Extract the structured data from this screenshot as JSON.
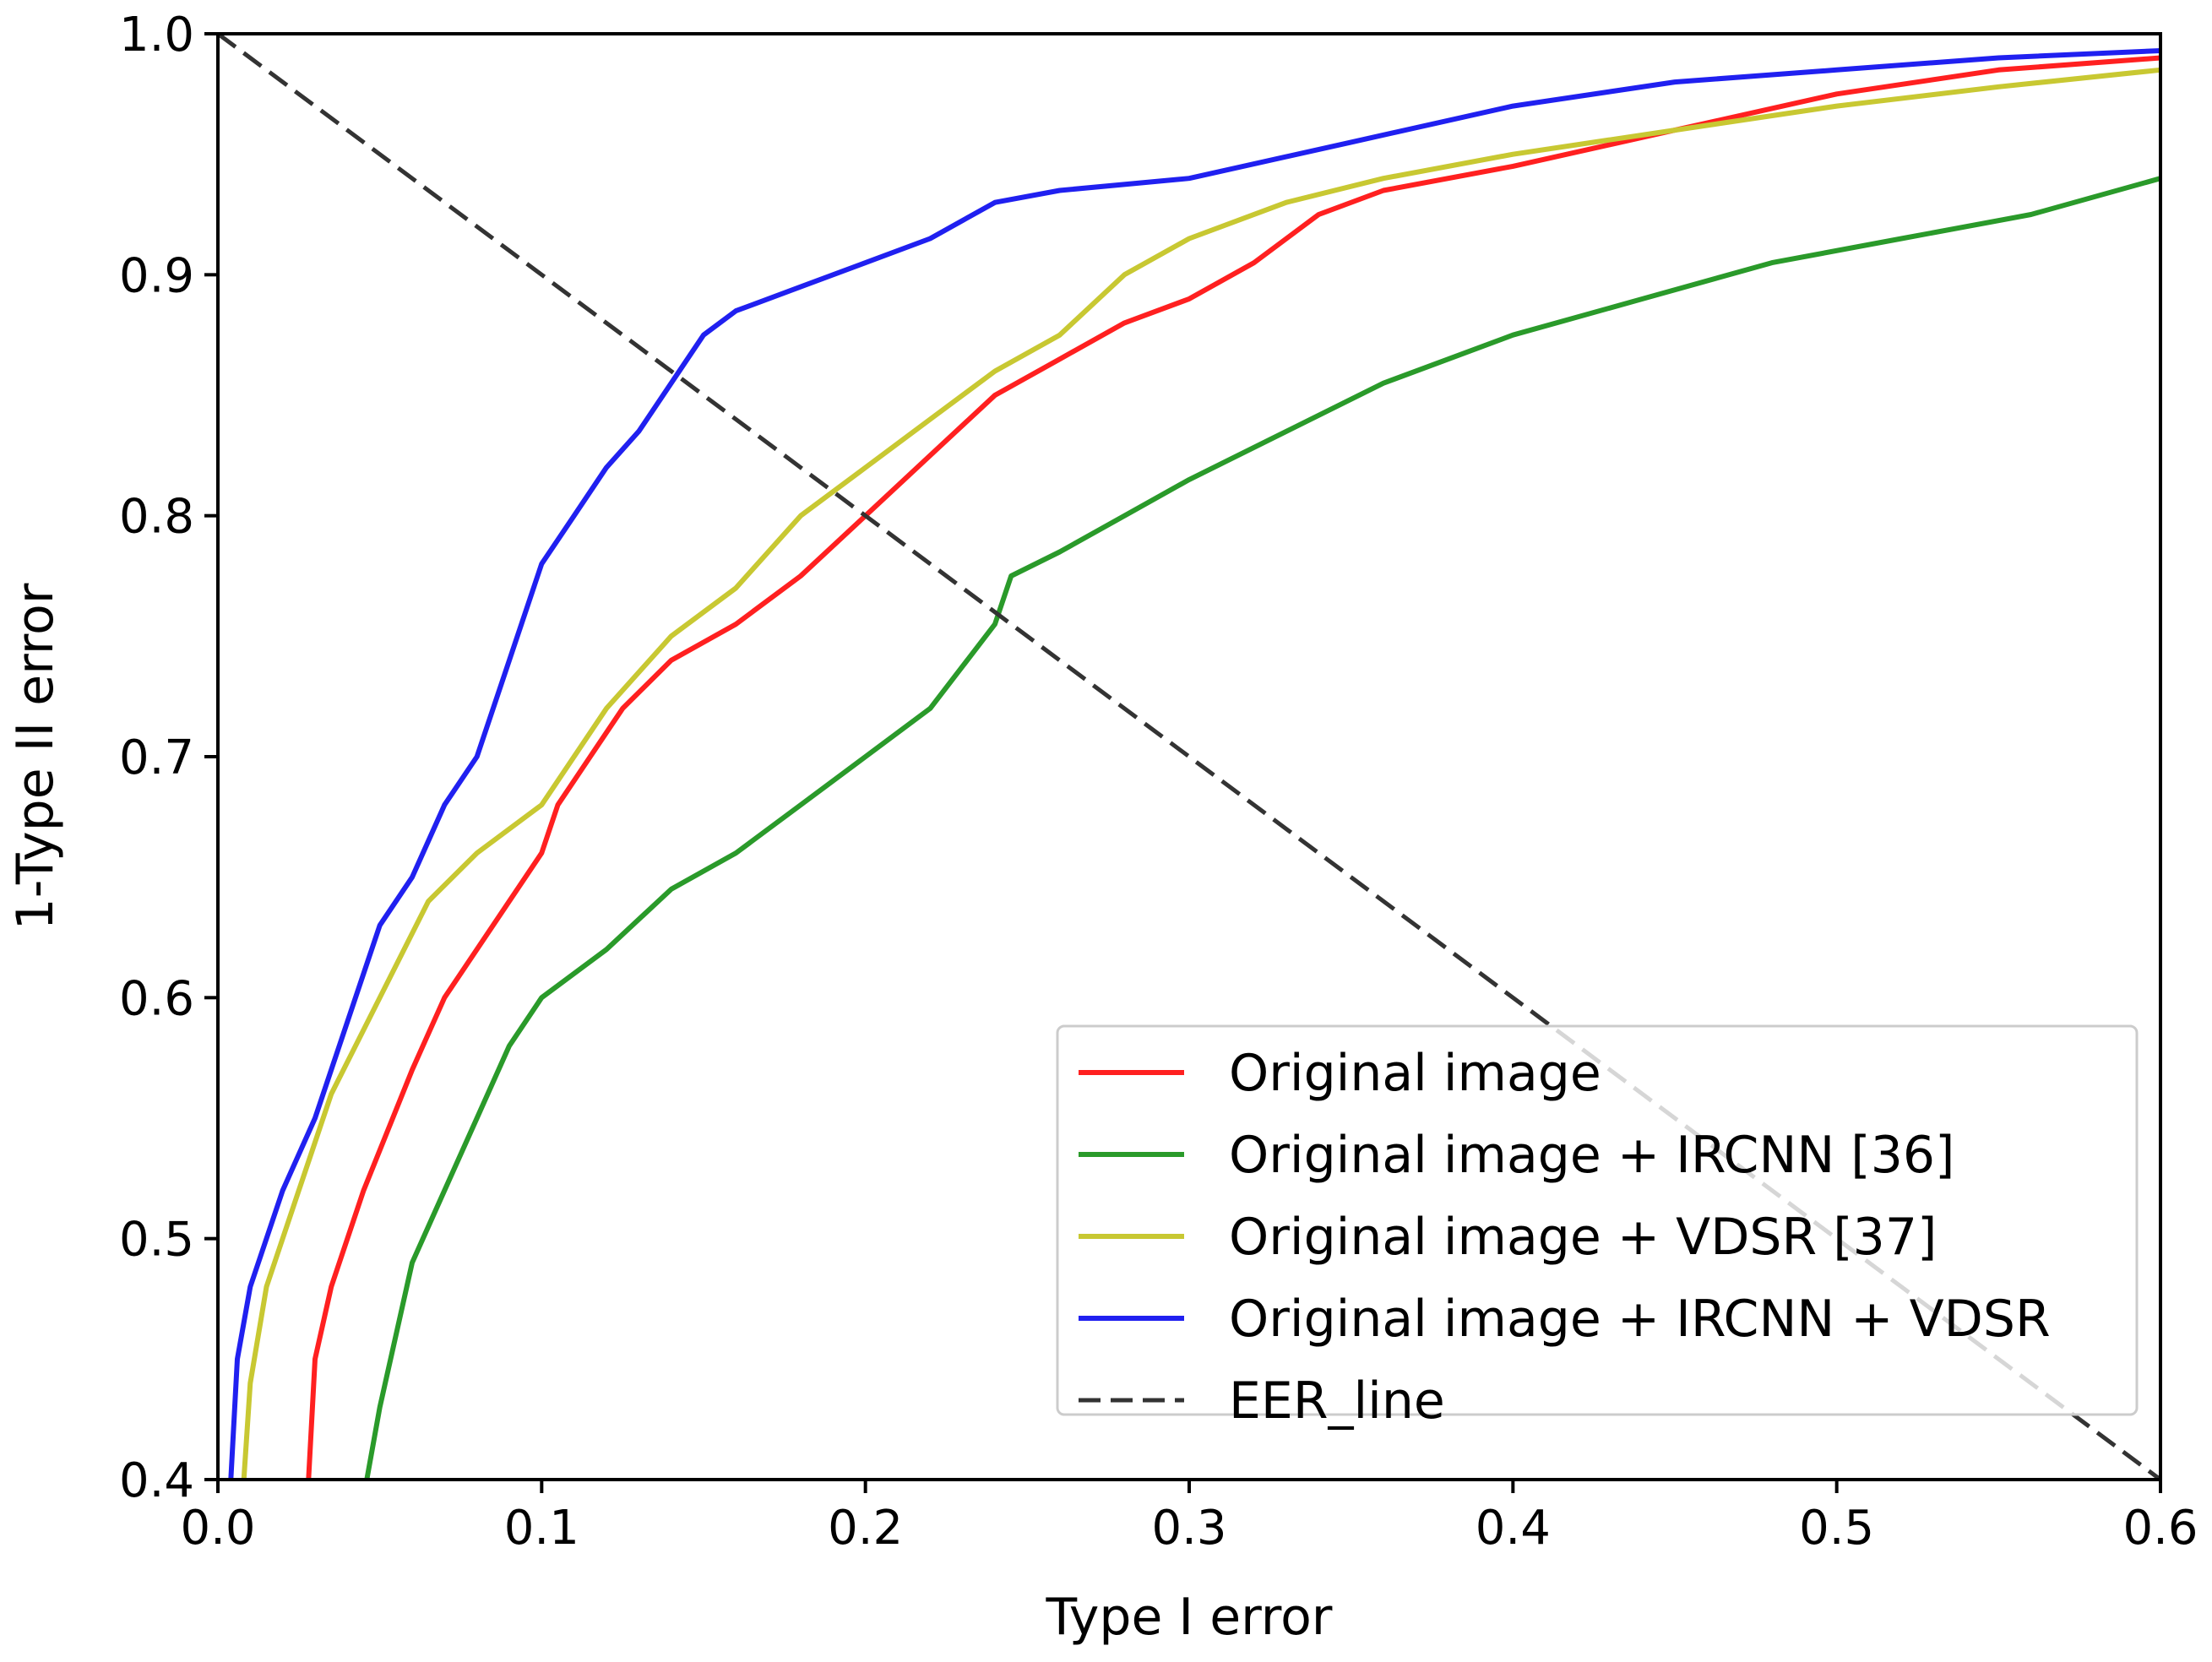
{
  "chart_data": {
    "type": "line",
    "title": "",
    "xlabel": "Type I error",
    "ylabel": "1-Type II error",
    "xlim": [
      0.0,
      0.6
    ],
    "ylim": [
      0.4,
      1.0
    ],
    "xticks": [
      "0.0",
      "0.1",
      "0.2",
      "0.3",
      "0.4",
      "0.5",
      "0.6"
    ],
    "yticks": [
      "0.4",
      "0.5",
      "0.6",
      "0.7",
      "0.8",
      "0.9",
      "1.0"
    ],
    "grid": false,
    "legend_position": "lower-right",
    "series": [
      {
        "name": "Original image",
        "color": "#ff2020",
        "style": "solid",
        "points": [
          [
            0.028,
            0.4
          ],
          [
            0.03,
            0.45
          ],
          [
            0.035,
            0.48
          ],
          [
            0.045,
            0.52
          ],
          [
            0.06,
            0.57
          ],
          [
            0.07,
            0.6
          ],
          [
            0.085,
            0.63
          ],
          [
            0.1,
            0.66
          ],
          [
            0.105,
            0.68
          ],
          [
            0.115,
            0.7
          ],
          [
            0.125,
            0.72
          ],
          [
            0.14,
            0.74
          ],
          [
            0.16,
            0.755
          ],
          [
            0.18,
            0.775
          ],
          [
            0.2,
            0.8
          ],
          [
            0.22,
            0.825
          ],
          [
            0.24,
            0.85
          ],
          [
            0.26,
            0.865
          ],
          [
            0.28,
            0.88
          ],
          [
            0.3,
            0.89
          ],
          [
            0.32,
            0.905
          ],
          [
            0.34,
            0.925
          ],
          [
            0.36,
            0.935
          ],
          [
            0.4,
            0.945
          ],
          [
            0.45,
            0.96
          ],
          [
            0.5,
            0.975
          ],
          [
            0.55,
            0.985
          ],
          [
            0.6,
            0.99
          ]
        ]
      },
      {
        "name": "Original image + IRCNN [36]",
        "color": "#2a9a2a",
        "style": "solid",
        "points": [
          [
            0.046,
            0.4
          ],
          [
            0.05,
            0.43
          ],
          [
            0.06,
            0.49
          ],
          [
            0.07,
            0.52
          ],
          [
            0.08,
            0.55
          ],
          [
            0.09,
            0.58
          ],
          [
            0.1,
            0.6
          ],
          [
            0.12,
            0.62
          ],
          [
            0.14,
            0.645
          ],
          [
            0.16,
            0.66
          ],
          [
            0.18,
            0.68
          ],
          [
            0.2,
            0.7
          ],
          [
            0.22,
            0.72
          ],
          [
            0.24,
            0.755
          ],
          [
            0.245,
            0.775
          ],
          [
            0.26,
            0.785
          ],
          [
            0.28,
            0.8
          ],
          [
            0.3,
            0.815
          ],
          [
            0.33,
            0.835
          ],
          [
            0.36,
            0.855
          ],
          [
            0.4,
            0.875
          ],
          [
            0.44,
            0.89
          ],
          [
            0.48,
            0.905
          ],
          [
            0.52,
            0.915
          ],
          [
            0.56,
            0.925
          ],
          [
            0.6,
            0.94
          ]
        ]
      },
      {
        "name": "Original image + VDSR [37]",
        "color": "#c8c832",
        "style": "solid",
        "points": [
          [
            0.008,
            0.4
          ],
          [
            0.01,
            0.44
          ],
          [
            0.015,
            0.48
          ],
          [
            0.025,
            0.52
          ],
          [
            0.035,
            0.56
          ],
          [
            0.05,
            0.6
          ],
          [
            0.065,
            0.64
          ],
          [
            0.08,
            0.66
          ],
          [
            0.1,
            0.68
          ],
          [
            0.12,
            0.72
          ],
          [
            0.14,
            0.75
          ],
          [
            0.16,
            0.77
          ],
          [
            0.18,
            0.8
          ],
          [
            0.2,
            0.82
          ],
          [
            0.22,
            0.84
          ],
          [
            0.24,
            0.86
          ],
          [
            0.26,
            0.875
          ],
          [
            0.28,
            0.9
          ],
          [
            0.3,
            0.915
          ],
          [
            0.33,
            0.93
          ],
          [
            0.36,
            0.94
          ],
          [
            0.4,
            0.95
          ],
          [
            0.45,
            0.96
          ],
          [
            0.5,
            0.97
          ],
          [
            0.55,
            0.978
          ],
          [
            0.6,
            0.985
          ]
        ]
      },
      {
        "name": "Original image + IRCNN + VDSR",
        "color": "#2020f0",
        "style": "solid",
        "points": [
          [
            0.004,
            0.4
          ],
          [
            0.006,
            0.45
          ],
          [
            0.01,
            0.48
          ],
          [
            0.02,
            0.52
          ],
          [
            0.03,
            0.55
          ],
          [
            0.04,
            0.59
          ],
          [
            0.05,
            0.63
          ],
          [
            0.06,
            0.65
          ],
          [
            0.07,
            0.68
          ],
          [
            0.08,
            0.7
          ],
          [
            0.09,
            0.74
          ],
          [
            0.1,
            0.78
          ],
          [
            0.11,
            0.8
          ],
          [
            0.12,
            0.82
          ],
          [
            0.13,
            0.835
          ],
          [
            0.14,
            0.855
          ],
          [
            0.15,
            0.875
          ],
          [
            0.16,
            0.885
          ],
          [
            0.18,
            0.895
          ],
          [
            0.2,
            0.905
          ],
          [
            0.22,
            0.915
          ],
          [
            0.24,
            0.93
          ],
          [
            0.26,
            0.935
          ],
          [
            0.3,
            0.94
          ],
          [
            0.35,
            0.955
          ],
          [
            0.4,
            0.97
          ],
          [
            0.45,
            0.98
          ],
          [
            0.5,
            0.985
          ],
          [
            0.55,
            0.99
          ],
          [
            0.6,
            0.993
          ]
        ]
      },
      {
        "name": "EER_line",
        "color": "#333333",
        "style": "dashed",
        "points": [
          [
            0.0,
            1.0
          ],
          [
            0.6,
            0.4
          ]
        ]
      }
    ]
  }
}
